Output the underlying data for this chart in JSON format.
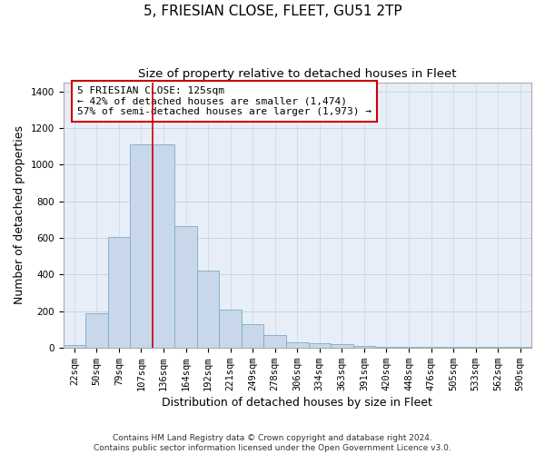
{
  "title": "5, FRIESIAN CLOSE, FLEET, GU51 2TP",
  "subtitle": "Size of property relative to detached houses in Fleet",
  "xlabel": "Distribution of detached houses by size in Fleet",
  "ylabel": "Number of detached properties",
  "footer_line1": "Contains HM Land Registry data © Crown copyright and database right 2024.",
  "footer_line2": "Contains public sector information licensed under the Open Government Licence v3.0.",
  "categories": [
    "22sqm",
    "50sqm",
    "79sqm",
    "107sqm",
    "136sqm",
    "164sqm",
    "192sqm",
    "221sqm",
    "249sqm",
    "278sqm",
    "306sqm",
    "334sqm",
    "363sqm",
    "391sqm",
    "420sqm",
    "448sqm",
    "476sqm",
    "505sqm",
    "533sqm",
    "562sqm",
    "590sqm"
  ],
  "values": [
    15,
    190,
    605,
    1110,
    1110,
    665,
    420,
    210,
    130,
    70,
    30,
    25,
    20,
    10,
    5,
    5,
    5,
    5,
    3,
    5,
    5
  ],
  "bar_color": "#c8d8ea",
  "bar_edge_color": "#7aaac8",
  "grid_color": "#c8d4e4",
  "background_color": "#e8eef8",
  "annotation_line1": "5 FRIESIAN CLOSE: 125sqm",
  "annotation_line2": "← 42% of detached houses are smaller (1,474)",
  "annotation_line3": "57% of semi-detached houses are larger (1,973) →",
  "vline_color": "#cc0000",
  "ylim": [
    0,
    1450
  ],
  "yticks": [
    0,
    200,
    400,
    600,
    800,
    1000,
    1200,
    1400
  ],
  "annotation_box_color": "white",
  "annotation_box_edge": "#cc0000",
  "title_fontsize": 11,
  "subtitle_fontsize": 9.5,
  "axis_label_fontsize": 9,
  "tick_fontsize": 7.5,
  "annotation_fontsize": 8,
  "footer_fontsize": 6.5
}
